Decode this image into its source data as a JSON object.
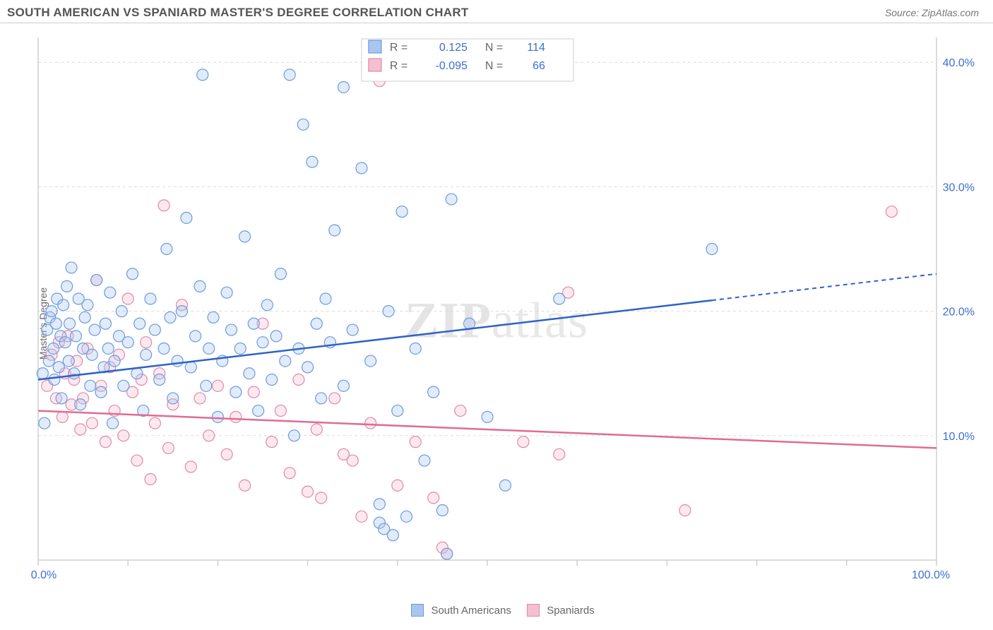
{
  "header": {
    "title": "SOUTH AMERICAN VS SPANIARD MASTER'S DEGREE CORRELATION CHART",
    "source_prefix": "Source: ",
    "source_name": "ZipAtlas.com"
  },
  "ylabel": "Master's Degree",
  "watermark": {
    "bold": "ZIP",
    "rest": "atlas"
  },
  "chart": {
    "type": "scatter",
    "xlim": [
      0,
      100
    ],
    "ylim": [
      0,
      42
    ],
    "yticks": [
      10,
      20,
      30,
      40
    ],
    "ytick_labels": [
      "10.0%",
      "20.0%",
      "30.0%",
      "40.0%"
    ],
    "xticks": [
      0,
      10,
      20,
      30,
      40,
      50,
      60,
      70,
      80,
      90,
      100
    ],
    "xtick_labels_shown": {
      "0": "0.0%",
      "100": "100.0%"
    },
    "background_color": "#ffffff",
    "grid_color": "#dcdcdc",
    "axis_color": "#cfcfcf",
    "marker_radius": 8,
    "marker_stroke_width": 1.2,
    "marker_fill_opacity": 0.35,
    "series": {
      "south_americans": {
        "label": "South Americans",
        "color": "#6a9be0",
        "fill": "#a9c6ee",
        "n": 114,
        "r": "0.125",
        "trend": {
          "y_at_x0": 14.5,
          "y_at_x100": 23.0,
          "solid_until_x": 75
        },
        "points": [
          [
            0.5,
            15.0
          ],
          [
            0.7,
            11.0
          ],
          [
            1.0,
            18.5
          ],
          [
            1.2,
            16.0
          ],
          [
            1.3,
            19.5
          ],
          [
            1.5,
            20.0
          ],
          [
            1.7,
            17.0
          ],
          [
            1.8,
            14.5
          ],
          [
            2.0,
            19.0
          ],
          [
            2.1,
            21.0
          ],
          [
            2.3,
            15.5
          ],
          [
            2.5,
            18.0
          ],
          [
            2.6,
            13.0
          ],
          [
            2.8,
            20.5
          ],
          [
            3.0,
            17.5
          ],
          [
            3.2,
            22.0
          ],
          [
            3.4,
            16.0
          ],
          [
            3.5,
            19.0
          ],
          [
            3.7,
            23.5
          ],
          [
            4.0,
            15.0
          ],
          [
            4.2,
            18.0
          ],
          [
            4.5,
            21.0
          ],
          [
            4.7,
            12.5
          ],
          [
            5.0,
            17.0
          ],
          [
            5.2,
            19.5
          ],
          [
            5.5,
            20.5
          ],
          [
            5.8,
            14.0
          ],
          [
            6.0,
            16.5
          ],
          [
            6.3,
            18.5
          ],
          [
            6.5,
            22.5
          ],
          [
            7.0,
            13.5
          ],
          [
            7.3,
            15.5
          ],
          [
            7.5,
            19.0
          ],
          [
            7.8,
            17.0
          ],
          [
            8.0,
            21.5
          ],
          [
            8.3,
            11.0
          ],
          [
            8.5,
            16.0
          ],
          [
            9.0,
            18.0
          ],
          [
            9.3,
            20.0
          ],
          [
            9.5,
            14.0
          ],
          [
            10.0,
            17.5
          ],
          [
            10.5,
            23.0
          ],
          [
            11.0,
            15.0
          ],
          [
            11.3,
            19.0
          ],
          [
            11.7,
            12.0
          ],
          [
            12.0,
            16.5
          ],
          [
            12.5,
            21.0
          ],
          [
            13.0,
            18.5
          ],
          [
            13.5,
            14.5
          ],
          [
            14.0,
            17.0
          ],
          [
            14.3,
            25.0
          ],
          [
            14.7,
            19.5
          ],
          [
            15.0,
            13.0
          ],
          [
            15.5,
            16.0
          ],
          [
            16.0,
            20.0
          ],
          [
            16.5,
            27.5
          ],
          [
            17.0,
            15.5
          ],
          [
            17.5,
            18.0
          ],
          [
            18.0,
            22.0
          ],
          [
            18.3,
            39.0
          ],
          [
            18.7,
            14.0
          ],
          [
            19.0,
            17.0
          ],
          [
            19.5,
            19.5
          ],
          [
            20.0,
            11.5
          ],
          [
            20.5,
            16.0
          ],
          [
            21.0,
            21.5
          ],
          [
            21.5,
            18.5
          ],
          [
            22.0,
            13.5
          ],
          [
            22.5,
            17.0
          ],
          [
            23.0,
            26.0
          ],
          [
            23.5,
            15.0
          ],
          [
            24.0,
            19.0
          ],
          [
            24.5,
            12.0
          ],
          [
            25.0,
            17.5
          ],
          [
            25.5,
            20.5
          ],
          [
            26.0,
            14.5
          ],
          [
            26.5,
            18.0
          ],
          [
            27.0,
            23.0
          ],
          [
            27.5,
            16.0
          ],
          [
            28.0,
            39.0
          ],
          [
            28.5,
            10.0
          ],
          [
            29.0,
            17.0
          ],
          [
            29.5,
            35.0
          ],
          [
            30.0,
            15.5
          ],
          [
            30.5,
            32.0
          ],
          [
            31.0,
            19.0
          ],
          [
            31.5,
            13.0
          ],
          [
            32.0,
            21.0
          ],
          [
            32.5,
            17.5
          ],
          [
            33.0,
            26.5
          ],
          [
            34.0,
            14.0
          ],
          [
            35.0,
            18.5
          ],
          [
            36.0,
            31.5
          ],
          [
            37.0,
            16.0
          ],
          [
            38.0,
            3.0
          ],
          [
            38.5,
            2.5
          ],
          [
            39.0,
            20.0
          ],
          [
            40.0,
            12.0
          ],
          [
            40.5,
            28.0
          ],
          [
            41.0,
            3.5
          ],
          [
            42.0,
            17.0
          ],
          [
            43.0,
            8.0
          ],
          [
            44.0,
            13.5
          ],
          [
            45.0,
            4.0
          ],
          [
            46.0,
            29.0
          ],
          [
            48.0,
            19.0
          ],
          [
            50.0,
            11.5
          ],
          [
            52.0,
            6.0
          ],
          [
            58.0,
            21.0
          ],
          [
            75.0,
            25.0
          ],
          [
            45.5,
            0.5
          ],
          [
            39.5,
            2.0
          ],
          [
            38.0,
            4.5
          ],
          [
            34.0,
            38.0
          ]
        ]
      },
      "spaniards": {
        "label": "Spaniards",
        "color": "#e388a6",
        "fill": "#f3c0d0",
        "n": 66,
        "r": "-0.095",
        "trend": {
          "y_at_x0": 12.0,
          "y_at_x100": 9.0,
          "solid_until_x": 100
        },
        "points": [
          [
            1.0,
            14.0
          ],
          [
            1.5,
            16.5
          ],
          [
            2.0,
            13.0
          ],
          [
            2.3,
            17.5
          ],
          [
            2.7,
            11.5
          ],
          [
            3.0,
            15.0
          ],
          [
            3.3,
            18.0
          ],
          [
            3.7,
            12.5
          ],
          [
            4.0,
            14.5
          ],
          [
            4.3,
            16.0
          ],
          [
            4.7,
            10.5
          ],
          [
            5.0,
            13.0
          ],
          [
            5.5,
            17.0
          ],
          [
            6.0,
            11.0
          ],
          [
            6.5,
            22.5
          ],
          [
            7.0,
            14.0
          ],
          [
            7.5,
            9.5
          ],
          [
            8.0,
            15.5
          ],
          [
            8.5,
            12.0
          ],
          [
            9.0,
            16.5
          ],
          [
            9.5,
            10.0
          ],
          [
            10.0,
            21.0
          ],
          [
            10.5,
            13.5
          ],
          [
            11.0,
            8.0
          ],
          [
            11.5,
            14.5
          ],
          [
            12.0,
            17.5
          ],
          [
            12.5,
            6.5
          ],
          [
            13.0,
            11.0
          ],
          [
            13.5,
            15.0
          ],
          [
            14.0,
            28.5
          ],
          [
            14.5,
            9.0
          ],
          [
            15.0,
            12.5
          ],
          [
            16.0,
            20.5
          ],
          [
            17.0,
            7.5
          ],
          [
            18.0,
            13.0
          ],
          [
            19.0,
            10.0
          ],
          [
            20.0,
            14.0
          ],
          [
            21.0,
            8.5
          ],
          [
            22.0,
            11.5
          ],
          [
            23.0,
            6.0
          ],
          [
            24.0,
            13.5
          ],
          [
            25.0,
            19.0
          ],
          [
            26.0,
            9.5
          ],
          [
            27.0,
            12.0
          ],
          [
            28.0,
            7.0
          ],
          [
            29.0,
            14.5
          ],
          [
            30.0,
            5.5
          ],
          [
            31.0,
            10.5
          ],
          [
            33.0,
            13.0
          ],
          [
            35.0,
            8.0
          ],
          [
            37.0,
            11.0
          ],
          [
            38.0,
            38.5
          ],
          [
            40.0,
            6.0
          ],
          [
            42.0,
            9.5
          ],
          [
            44.0,
            5.0
          ],
          [
            45.0,
            1.0
          ],
          [
            45.5,
            0.5
          ],
          [
            47.0,
            12.0
          ],
          [
            54.0,
            9.5
          ],
          [
            58.0,
            8.5
          ],
          [
            59.0,
            21.5
          ],
          [
            72.0,
            4.0
          ],
          [
            95.0,
            28.0
          ],
          [
            31.5,
            5.0
          ],
          [
            34.0,
            8.5
          ],
          [
            36.0,
            3.5
          ]
        ]
      }
    }
  },
  "stats_box": {
    "rows": [
      {
        "swatch_fill": "#a9c6ee",
        "swatch_stroke": "#6a9be0",
        "r_label": "R =",
        "r_value": "0.125",
        "n_label": "N =",
        "n_value": "114",
        "value_color": "#3b6fd4"
      },
      {
        "swatch_fill": "#f3c0d0",
        "swatch_stroke": "#e388a6",
        "r_label": "R =",
        "r_value": "-0.095",
        "n_label": "N =",
        "n_value": "66",
        "value_color": "#3b6fd4"
      }
    ]
  },
  "bottom_legend": [
    {
      "fill": "#a9c6ee",
      "stroke": "#6a9be0",
      "label": "South Americans"
    },
    {
      "fill": "#f3c0d0",
      "stroke": "#e388a6",
      "label": "Spaniards"
    }
  ]
}
